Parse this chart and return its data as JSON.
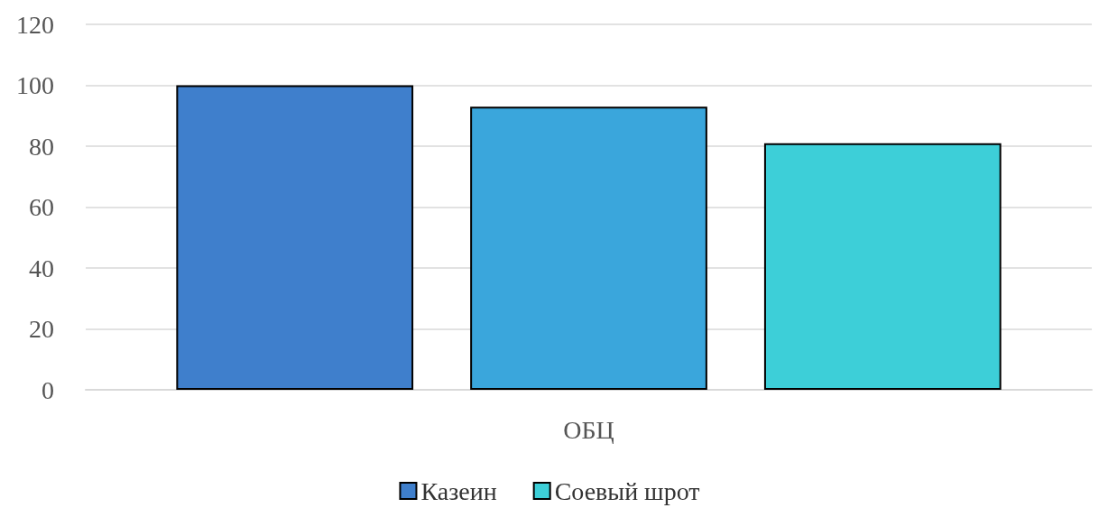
{
  "chart_data": {
    "type": "bar",
    "categories": [
      "ОБЦ"
    ],
    "series": [
      {
        "name": "Казеин",
        "color": "#3f7fcc",
        "values": [
          100
        ]
      },
      {
        "color": "#3aa6dc",
        "values": [
          93
        ]
      },
      {
        "name": "Соевый шрот",
        "color": "#3dcfd8",
        "values": [
          81
        ]
      }
    ],
    "ylim": [
      0,
      120
    ],
    "yticks": [
      0,
      20,
      40,
      60,
      80,
      100,
      120
    ],
    "grid": "y",
    "legend": "bottom"
  }
}
